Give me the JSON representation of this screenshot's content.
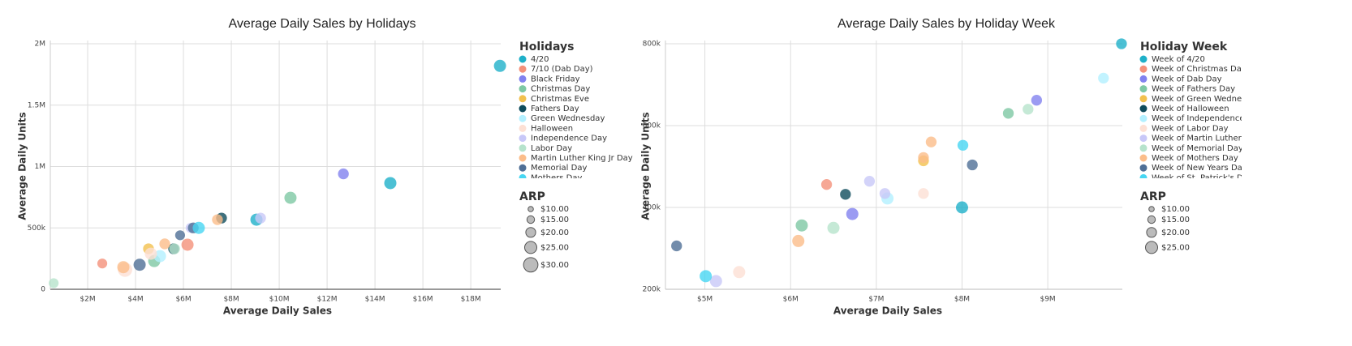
{
  "chart_data": [
    {
      "type": "scatter",
      "title": "Average Daily Sales by Holidays",
      "x_label": "Average Daily Sales",
      "y_label": "Average Daily Units",
      "legend_title": "Holidays",
      "size_legend_title": "ARP",
      "grid": true,
      "xlim": [
        440000,
        19250000
      ],
      "ylim": [
        0,
        2000000
      ],
      "xticks": [
        {
          "value": 2000000,
          "label": "$2M"
        },
        {
          "value": 4000000,
          "label": "$4M"
        },
        {
          "value": 6000000,
          "label": "$6M"
        },
        {
          "value": 8000000,
          "label": "$8M"
        },
        {
          "value": 10000000,
          "label": "$10M"
        },
        {
          "value": 12000000,
          "label": "$12M"
        },
        {
          "value": 14000000,
          "label": "$14M"
        },
        {
          "value": 16000000,
          "label": "$16M"
        },
        {
          "value": 18000000,
          "label": "$18M"
        }
      ],
      "yticks": [
        0,
        {
          "value": 500000,
          "label": "500k"
        },
        {
          "value": 1000000,
          "label": "1M"
        },
        {
          "value": 1500000,
          "label": "1.5M"
        },
        {
          "value": 2000000,
          "label": "2M"
        }
      ],
      "size_legend": {
        "values": [
          10,
          15,
          20,
          25,
          30
        ],
        "labels": [
          "$10.00",
          "$15.00",
          "$20.00",
          "$25.00",
          "$30.00"
        ]
      },
      "series": [
        {
          "name": "4/20",
          "color": "#1fb0c9",
          "x": [
            19220000,
            14640000,
            9050000
          ],
          "values": [
            1820000,
            865000,
            567000
          ],
          "sizes": [
            25,
            25,
            25
          ]
        },
        {
          "name": "7/10 (Dab Day)",
          "color": "#f4917a",
          "x": [
            6170000,
            2610000
          ],
          "values": [
            363000,
            210000
          ],
          "sizes": [
            25,
            20
          ]
        },
        {
          "name": "Black Friday",
          "color": "#8282ef",
          "x": [
            12680000
          ],
          "values": [
            940000
          ],
          "sizes": [
            22
          ]
        },
        {
          "name": "Christmas Day",
          "color": "#7ec8a4",
          "x": [
            10470000,
            4780000
          ],
          "values": [
            745000,
            230000
          ],
          "sizes": [
            25,
            25
          ]
        },
        {
          "name": "Christmas Eve",
          "color": "#f2c14e",
          "x": [
            4540000
          ],
          "values": [
            330000
          ],
          "sizes": [
            22
          ]
        },
        {
          "name": "Fathers Day",
          "color": "#0f4c5c",
          "x": [
            7590000,
            5590000
          ],
          "values": [
            580000,
            330000
          ],
          "sizes": [
            22,
            22
          ]
        },
        {
          "name": "Green Wednesday",
          "color": "#b3f0ff",
          "x": [
            5020000
          ],
          "values": [
            270000
          ],
          "sizes": [
            25
          ]
        },
        {
          "name": "Halloween",
          "color": "#fde0d4",
          "x": [
            4640000,
            3560000
          ],
          "values": [
            290000,
            160000
          ],
          "sizes": [
            25,
            30
          ]
        },
        {
          "name": "Independence Day",
          "color": "#c8c8f8",
          "x": [
            9220000,
            6300000
          ],
          "values": [
            580000,
            500000
          ],
          "sizes": [
            22,
            20
          ]
        },
        {
          "name": "Labor Day",
          "color": "#b6e3cc",
          "x": [
            5630000,
            580000
          ],
          "values": [
            330000,
            50000
          ],
          "sizes": [
            22,
            20
          ]
        },
        {
          "name": "Martin Luther King Jr Day",
          "color": "#fbbd8a",
          "x": [
            7420000,
            5220000,
            3490000
          ],
          "values": [
            567000,
            370000,
            180000
          ],
          "sizes": [
            22,
            22,
            25
          ]
        },
        {
          "name": "Memorial Day",
          "color": "#4f6f96",
          "x": [
            6410000,
            5860000,
            4170000
          ],
          "values": [
            500000,
            440000,
            200000
          ],
          "sizes": [
            22,
            20,
            25
          ]
        },
        {
          "name": "Mothers Day",
          "color": "#47d6f2",
          "x": [
            6640000
          ],
          "values": [
            500000
          ],
          "sizes": [
            25
          ]
        }
      ]
    },
    {
      "type": "scatter",
      "title": "Average Daily Sales by Holiday Week",
      "x_label": "Average Daily Sales",
      "y_label": "Average Daily Units",
      "legend_title": "Holiday Week",
      "size_legend_title": "ARP",
      "grid": true,
      "xlim": [
        4540000,
        9870000
      ],
      "ylim": [
        200000,
        800000
      ],
      "xticks": [
        {
          "value": 5000000,
          "label": "$5M"
        },
        {
          "value": 6000000,
          "label": "$6M"
        },
        {
          "value": 7000000,
          "label": "$7M"
        },
        {
          "value": 8000000,
          "label": "$8M"
        },
        {
          "value": 9000000,
          "label": "$9M"
        }
      ],
      "yticks": [
        {
          "value": 200000,
          "label": "200k"
        },
        {
          "value": 400000,
          "label": "400k"
        },
        {
          "value": 600000,
          "label": "600k"
        },
        {
          "value": 800000,
          "label": "800k"
        }
      ],
      "size_legend": {
        "values": [
          10,
          15,
          20,
          25
        ],
        "labels": [
          "$10.00",
          "$15.00",
          "$20.00",
          "$25.00"
        ]
      },
      "series": [
        {
          "name": "Week of 4/20",
          "color": "#1fb0c9",
          "x": [
            9860000,
            8000000
          ],
          "values": [
            800000,
            400000
          ],
          "sizes": [
            22,
            25
          ]
        },
        {
          "name": "Week of Christmas Day",
          "color": "#f4917a",
          "x": [
            6420000
          ],
          "values": [
            456000
          ],
          "sizes": [
            22
          ]
        },
        {
          "name": "Week of Dab Day",
          "color": "#8282ef",
          "x": [
            8870000,
            6720000
          ],
          "values": [
            662000,
            384000
          ],
          "sizes": [
            22,
            25
          ]
        },
        {
          "name": "Week of Fathers Day",
          "color": "#7ec8a4",
          "x": [
            8540000,
            6130000
          ],
          "values": [
            630000,
            356000
          ],
          "sizes": [
            22,
            25
          ]
        },
        {
          "name": "Week of Green Wednesd...",
          "color": "#f2c14e",
          "x": [
            7550000
          ],
          "values": [
            514000
          ],
          "sizes": [
            22
          ]
        },
        {
          "name": "Week of Halloween",
          "color": "#0f4c5c",
          "x": [
            6640000
          ],
          "values": [
            432000
          ],
          "sizes": [
            22
          ]
        },
        {
          "name": "Week of Independence ...",
          "color": "#b3f0ff",
          "x": [
            9650000,
            7130000
          ],
          "values": [
            716000,
            422000
          ],
          "sizes": [
            22,
            25
          ]
        },
        {
          "name": "Week of Labor Day",
          "color": "#fde0d4",
          "x": [
            7550000,
            5400000
          ],
          "values": [
            434000,
            242000
          ],
          "sizes": [
            22,
            25
          ]
        },
        {
          "name": "Week of Martin Luther K...",
          "color": "#c8c8f8",
          "x": [
            6920000,
            7100000,
            5130000
          ],
          "values": [
            464000,
            434000,
            220000
          ],
          "sizes": [
            22,
            22,
            25
          ]
        },
        {
          "name": "Week of Memorial Day",
          "color": "#b6e3cc",
          "x": [
            8770000,
            6500000
          ],
          "values": [
            640000,
            350000
          ],
          "sizes": [
            22,
            25
          ]
        },
        {
          "name": "Week of Mothers Day",
          "color": "#fbbd8a",
          "x": [
            7640000,
            7550000,
            6090000
          ],
          "values": [
            560000,
            522000,
            318000
          ],
          "sizes": [
            22,
            22,
            25
          ]
        },
        {
          "name": "Week of New Years Day",
          "color": "#4f6f96",
          "x": [
            8120000,
            4670000
          ],
          "values": [
            504000,
            306000
          ],
          "sizes": [
            22,
            22
          ]
        },
        {
          "name": "Week of St. Patrick's Day",
          "color": "#47d6f2",
          "x": [
            8010000,
            5010000
          ],
          "values": [
            552000,
            232000
          ],
          "sizes": [
            22,
            25
          ]
        }
      ]
    }
  ]
}
